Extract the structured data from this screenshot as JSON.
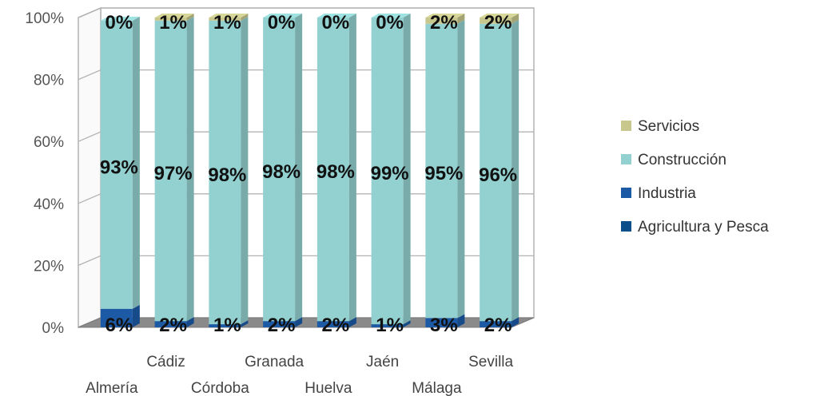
{
  "chart_data": {
    "type": "bar",
    "stacked": true,
    "percent": true,
    "three_d": true,
    "categories": [
      "Almería",
      "Cádiz",
      "Córdoba",
      "Granada",
      "Huelva",
      "Jaén",
      "Málaga",
      "Sevilla"
    ],
    "series": [
      {
        "name": "Agricultura y Pesca",
        "color": "#0b4f8a",
        "values": [
          0,
          0,
          0,
          0,
          0,
          0,
          0,
          0
        ],
        "labels": [
          "",
          "",
          "",
          "",
          "",
          "",
          "",
          ""
        ]
      },
      {
        "name": "Industria",
        "color": "#1c5aa6",
        "values": [
          6,
          2,
          1,
          2,
          2,
          1,
          3,
          2
        ],
        "labels": [
          "6%",
          "2%",
          "1%",
          "2%",
          "2%",
          "1%",
          "3%",
          "2%"
        ]
      },
      {
        "name": "Construcción",
        "color": "#93d1d1",
        "values": [
          93,
          97,
          98,
          98,
          98,
          99,
          95,
          96
        ],
        "labels": [
          "93%",
          "97%",
          "98%",
          "98%",
          "98%",
          "99%",
          "95%",
          "96%"
        ]
      },
      {
        "name": "Servicios",
        "color": "#c7c78e",
        "values": [
          0,
          1,
          1,
          0,
          0,
          0,
          2,
          2
        ],
        "labels": [
          "0%",
          "1%",
          "1%",
          "0%",
          "0%",
          "0%",
          "2%",
          "2%"
        ]
      }
    ],
    "y_ticks": [
      "0%",
      "20%",
      "40%",
      "60%",
      "80%",
      "100%"
    ],
    "ylim": [
      0,
      100
    ],
    "grid": true,
    "legend_position": "right"
  }
}
